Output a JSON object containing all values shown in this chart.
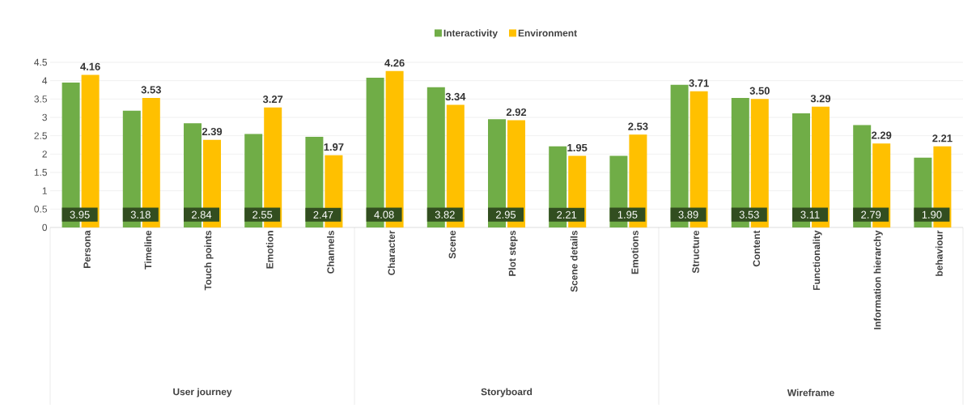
{
  "chart_data": {
    "type": "bar",
    "categories": [
      "Persona",
      "Timeline",
      "Touch points",
      "Emotion",
      "Channels",
      "Character",
      "Scene",
      "Plot steps",
      "Scene details",
      "Emotions",
      "Structure",
      "Content",
      "Functionality",
      "Information hierarchy",
      "behaviour"
    ],
    "series": [
      {
        "name": "Interactivity",
        "color": "#70ad47",
        "values": [
          3.95,
          3.18,
          2.84,
          2.55,
          2.47,
          4.08,
          3.82,
          2.95,
          2.21,
          1.95,
          3.89,
          3.53,
          3.11,
          2.79,
          1.9
        ],
        "value_labels": [
          "3.95",
          "3.18",
          "2.84",
          "2.55",
          "2.47",
          "4.08",
          "3.82",
          "2.95",
          "2.21",
          "1.95",
          "3.89",
          "3.53",
          "3.11",
          "2.79",
          "1.90"
        ]
      },
      {
        "name": "Environment",
        "color": "#ffc000",
        "values": [
          4.16,
          3.53,
          2.39,
          3.27,
          1.97,
          4.26,
          3.34,
          2.92,
          1.95,
          2.53,
          3.71,
          3.5,
          3.29,
          2.29,
          2.21
        ],
        "value_labels": [
          "4.16",
          "3.53",
          "2.39",
          "3.27",
          "1.97",
          "4.26",
          "3.34",
          "2.92",
          "1.95",
          "2.53",
          "3.71",
          "3.50",
          "3.29",
          "2.29",
          "2.21"
        ]
      }
    ],
    "annotations": [
      "User journey",
      "Storyboard",
      "Wireframe"
    ],
    "ylim": [
      0,
      4.5
    ],
    "yticks": [
      0,
      0.5,
      1,
      1.5,
      2,
      2.5,
      3,
      3.5,
      4,
      4.5
    ],
    "grid": "y",
    "legend": "top"
  }
}
